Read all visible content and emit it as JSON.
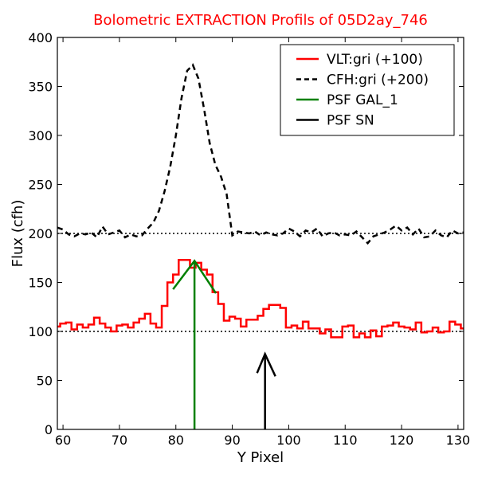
{
  "chart_data": {
    "type": "line",
    "title": "Bolometric EXTRACTION Profils of 05D2ay_746",
    "title_color": "#ff0000",
    "xlabel": "Y Pixel",
    "ylabel": "Flux (cfh)",
    "xlim": [
      59,
      131
    ],
    "ylim": [
      0,
      400
    ],
    "xticks": [
      60,
      70,
      80,
      90,
      100,
      110,
      120,
      130
    ],
    "yticks": [
      0,
      50,
      100,
      150,
      200,
      250,
      300,
      350,
      400
    ],
    "grid": false,
    "legend_position": "top-right",
    "baselines": [
      {
        "y": 100,
        "style": "dotted",
        "color": "#000000"
      },
      {
        "y": 200,
        "style": "dotted",
        "color": "#000000"
      }
    ],
    "series": [
      {
        "name": "VLT:gri (+100)",
        "color": "#ff0000",
        "style": "steps",
        "x": [
          59,
          60,
          61,
          62,
          63,
          64,
          65,
          66,
          67,
          68,
          69,
          70,
          71,
          72,
          73,
          74,
          75,
          76,
          77,
          78,
          79,
          80,
          81,
          82,
          83,
          84,
          85,
          86,
          87,
          88,
          89,
          90,
          91,
          92,
          93,
          94,
          95,
          96,
          97,
          98,
          99,
          100,
          101,
          102,
          103,
          104,
          105,
          106,
          107,
          108,
          109,
          110,
          111,
          112,
          113,
          114,
          115,
          116,
          117,
          118,
          119,
          120,
          121,
          122,
          123,
          124,
          125,
          126,
          127,
          128,
          129,
          130,
          131
        ],
        "y": [
          105,
          108,
          109,
          102,
          107,
          104,
          107,
          114,
          108,
          104,
          100,
          106,
          107,
          104,
          109,
          113,
          118,
          108,
          104,
          126,
          150,
          158,
          173,
          173,
          165,
          170,
          163,
          158,
          140,
          128,
          111,
          115,
          113,
          105,
          112,
          112,
          116,
          123,
          127,
          127,
          124,
          104,
          106,
          103,
          110,
          103,
          103,
          98,
          102,
          94,
          94,
          105,
          106,
          94,
          98,
          94,
          101,
          95,
          105,
          106,
          109,
          105,
          104,
          102,
          109,
          99,
          100,
          104,
          99,
          100,
          110,
          107,
          103
        ]
      },
      {
        "name": "CFH:gri (+200)",
        "color": "#000000",
        "style": "dashed",
        "x": [
          59,
          60,
          61,
          62,
          63,
          64,
          65,
          66,
          67,
          68,
          69,
          70,
          71,
          72,
          73,
          74,
          75,
          76,
          77,
          78,
          79,
          80,
          81,
          82,
          83,
          84,
          85,
          86,
          87,
          88,
          89,
          90,
          91,
          92,
          93,
          94,
          95,
          96,
          97,
          98,
          99,
          100,
          101,
          102,
          103,
          104,
          105,
          106,
          107,
          108,
          109,
          110,
          111,
          112,
          113,
          114,
          115,
          116,
          117,
          118,
          119,
          120,
          121,
          122,
          123,
          124,
          125,
          126,
          127,
          128,
          129,
          130,
          131
        ],
        "y": [
          206,
          204,
          199,
          197,
          200,
          199,
          201,
          196,
          207,
          199,
          201,
          203,
          196,
          199,
          197,
          198,
          205,
          211,
          223,
          243,
          268,
          300,
          338,
          366,
          372,
          358,
          327,
          292,
          270,
          258,
          240,
          198,
          202,
          201,
          200,
          202,
          198,
          201,
          199,
          198,
          200,
          205,
          202,
          197,
          203,
          201,
          205,
          197,
          200,
          201,
          198,
          199,
          198,
          202,
          196,
          190,
          197,
          199,
          201,
          204,
          208,
          203,
          206,
          199,
          205,
          196,
          197,
          203,
          198,
          196,
          203,
          200,
          201
        ]
      },
      {
        "name": "PSF GAL_1",
        "color": "#008000",
        "style": "solid",
        "x": [
          79.5,
          83.3,
          87.1
        ],
        "y": [
          143,
          172,
          139
        ],
        "marker_x": 83.3
      },
      {
        "name": "PSF SN",
        "color": "#000000",
        "style": "arrow",
        "x": [
          95.8
        ],
        "y": [
          77
        ]
      }
    ]
  }
}
